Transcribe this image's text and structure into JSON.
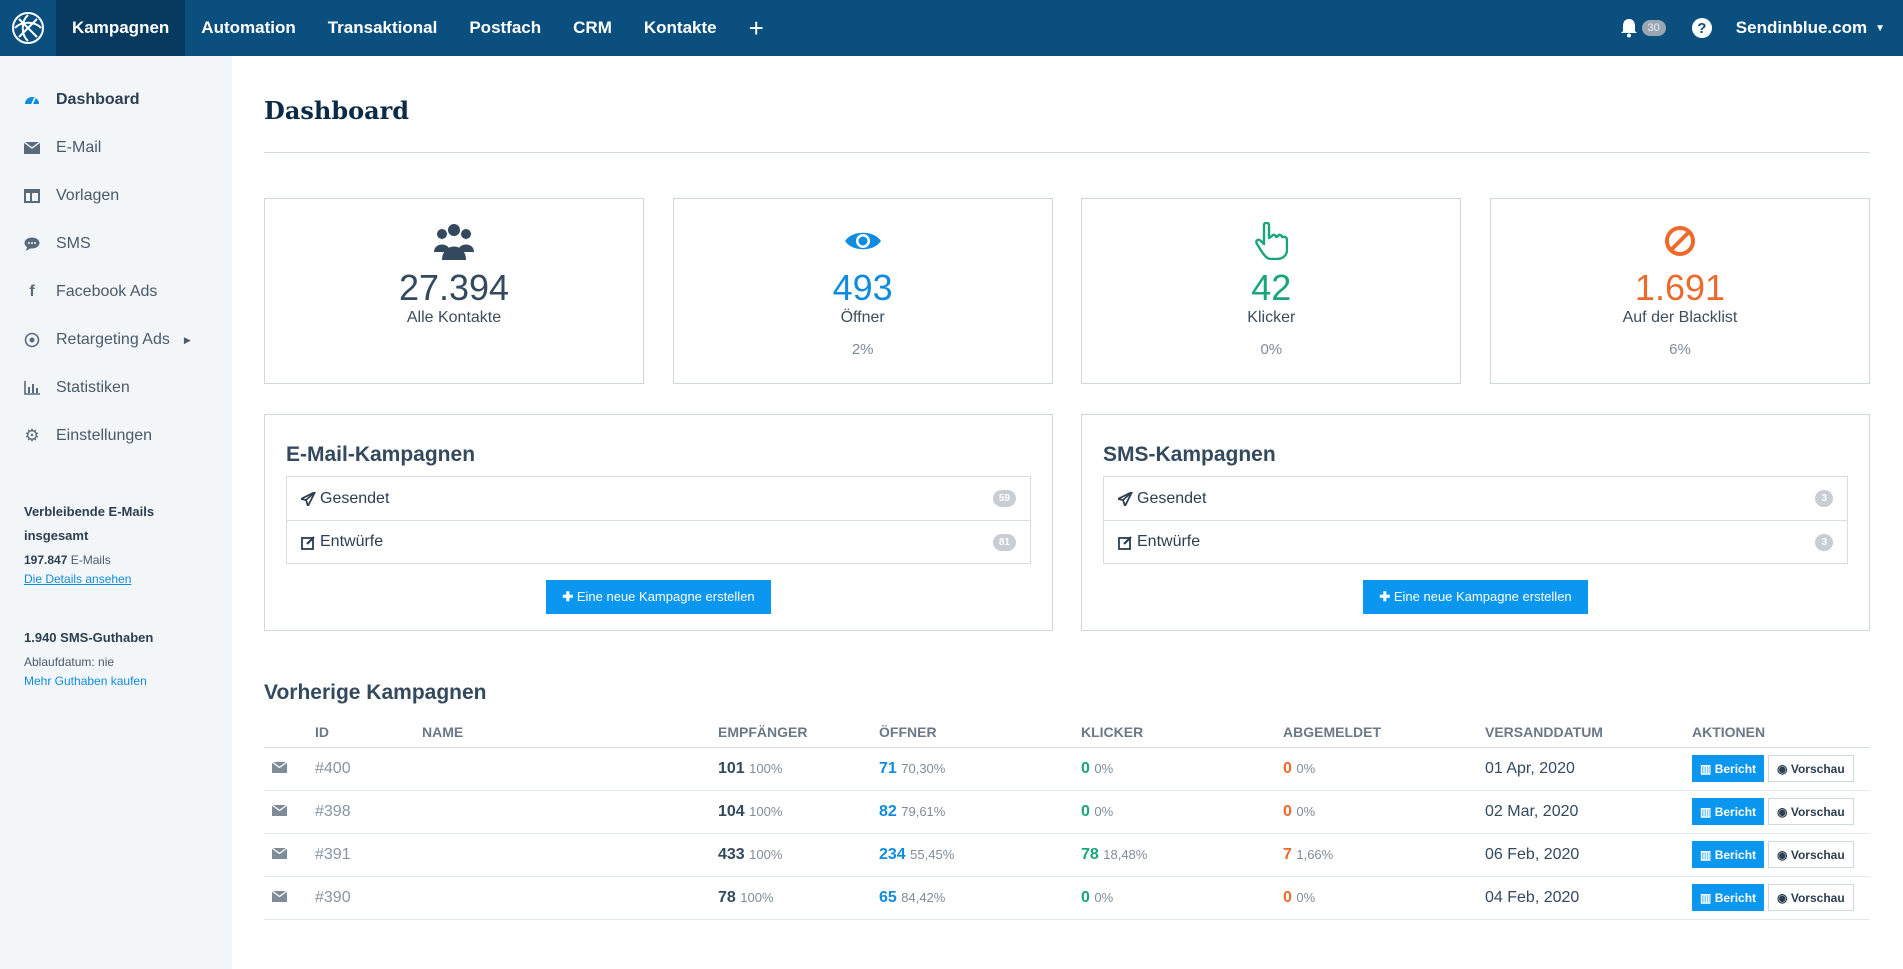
{
  "topnav": {
    "items": [
      {
        "label": "Kampagnen"
      },
      {
        "label": "Automation"
      },
      {
        "label": "Transaktional"
      },
      {
        "label": "Postfach"
      },
      {
        "label": "CRM"
      },
      {
        "label": "Kontakte"
      }
    ],
    "plus": "+",
    "notification_count": "30",
    "help": "?",
    "account": "Sendinblue.com"
  },
  "sidebar": {
    "items": [
      {
        "label": "Dashboard",
        "icon": "dashboard-icon"
      },
      {
        "label": "E-Mail",
        "icon": "envelope-icon"
      },
      {
        "label": "Vorlagen",
        "icon": "template-icon"
      },
      {
        "label": "SMS",
        "icon": "chat-icon"
      },
      {
        "label": "Facebook Ads",
        "icon": "facebook-icon"
      },
      {
        "label": "Retargeting Ads",
        "icon": "target-icon"
      },
      {
        "label": "Statistiken",
        "icon": "bar-chart-icon"
      },
      {
        "label": "Einstellungen",
        "icon": "gear-icon"
      }
    ],
    "emails_title": "Verbleibende E-Mails insgesamt",
    "emails_count": "197.847",
    "emails_unit": "E-Mails",
    "emails_link": "Die Details ansehen",
    "sms_title": "1.940 SMS-Guthaben",
    "sms_expiry": "Ablaufdatum: nie",
    "sms_link": "Mehr Guthaben kaufen"
  },
  "page_title": "Dashboard",
  "stats": [
    {
      "value": "27.394",
      "label": "Alle Kontakte",
      "pct": "",
      "icon": "users-icon",
      "color": "#34495e"
    },
    {
      "value": "493",
      "label": "Öffner",
      "pct": "2%",
      "icon": "eye-icon",
      "color": "#0f8ce0"
    },
    {
      "value": "42",
      "label": "Klicker",
      "pct": "0%",
      "icon": "pointer-hand-icon",
      "color": "#1aa57a"
    },
    {
      "value": "1.691",
      "label": "Auf der Blacklist",
      "pct": "6%",
      "icon": "ban-icon",
      "color": "#ee6a2b"
    }
  ],
  "email_campaigns": {
    "title": "E-Mail-Kampagnen",
    "sent_label": "Gesendet",
    "sent_count": "59",
    "drafts_label": "Entwürfe",
    "drafts_count": "81",
    "button": "Eine neue Kampagne erstellen"
  },
  "sms_campaigns": {
    "title": "SMS-Kampagnen",
    "sent_label": "Gesendet",
    "sent_count": "3",
    "drafts_label": "Entwürfe",
    "drafts_count": "3",
    "button": "Eine neue Kampagne erstellen"
  },
  "previous": {
    "title": "Vorherige Kampagnen",
    "headers": [
      "ID",
      "NAME",
      "EMPFÄNGER",
      "ÖFFNER",
      "KLICKER",
      "ABGEMELDET",
      "VERSANDDATUM",
      "AKTIONEN"
    ],
    "report_label": "Bericht",
    "preview_label": "Vorschau",
    "rows": [
      {
        "id": "#400",
        "name": "",
        "recipients": "101",
        "recipients_pct": "100%",
        "openers": "71",
        "openers_pct": "70,30%",
        "clickers": "0",
        "clickers_pct": "0%",
        "unsub": "0",
        "unsub_pct": "0%",
        "date": "01 Apr, 2020"
      },
      {
        "id": "#398",
        "name": "",
        "recipients": "104",
        "recipients_pct": "100%",
        "openers": "82",
        "openers_pct": "79,61%",
        "clickers": "0",
        "clickers_pct": "0%",
        "unsub": "0",
        "unsub_pct": "0%",
        "date": "02 Mar, 2020"
      },
      {
        "id": "#391",
        "name": "",
        "recipients": "433",
        "recipients_pct": "100%",
        "openers": "234",
        "openers_pct": "55,45%",
        "clickers": "78",
        "clickers_pct": "18,48%",
        "unsub": "7",
        "unsub_pct": "1,66%",
        "date": "06 Feb, 2020"
      },
      {
        "id": "#390",
        "name": "",
        "recipients": "78",
        "recipients_pct": "100%",
        "openers": "65",
        "openers_pct": "84,42%",
        "clickers": "0",
        "clickers_pct": "0%",
        "unsub": "0",
        "unsub_pct": "0%",
        "date": "04 Feb, 2020"
      }
    ]
  }
}
